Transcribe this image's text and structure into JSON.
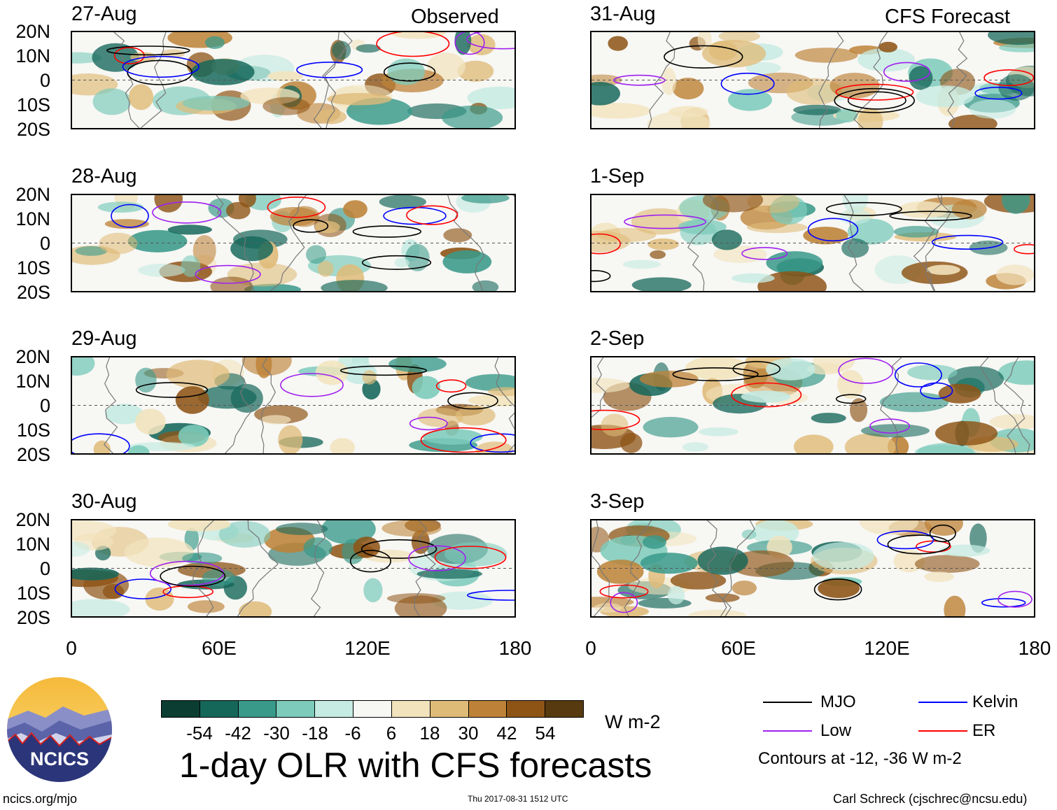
{
  "left_column": {
    "header_label": "Observed",
    "panels": [
      {
        "date": "27-Aug"
      },
      {
        "date": "28-Aug"
      },
      {
        "date": "29-Aug"
      },
      {
        "date": "30-Aug"
      }
    ]
  },
  "right_column": {
    "header_label": "CFS Forecast",
    "panels": [
      {
        "date": "31-Aug"
      },
      {
        "date": "1-Sep"
      },
      {
        "date": "2-Sep"
      },
      {
        "date": "3-Sep"
      }
    ]
  },
  "lat_labels": [
    "20N",
    "10N",
    "0",
    "10S",
    "20S"
  ],
  "lon_labels": [
    "0",
    "60E",
    "120E",
    "180"
  ],
  "colorbar": {
    "labels": [
      "-54",
      "-42",
      "-30",
      "-18",
      "-6",
      "6",
      "18",
      "30",
      "42",
      "54"
    ],
    "colors": [
      "#0b3d33",
      "#15675a",
      "#3a9a8a",
      "#7ccbbb",
      "#c5ebe2",
      "#f7f7f4",
      "#f2e3bd",
      "#dfbb78",
      "#bd8237",
      "#8e5416",
      "#583a10"
    ],
    "units": "W m-2"
  },
  "title": "1-day OLR with CFS forecasts",
  "legend": {
    "items": [
      {
        "label": "MJO",
        "color": "#000000"
      },
      {
        "label": "Kelvin",
        "color": "#0000ff"
      },
      {
        "label": "Low",
        "color": "#a020f0"
      },
      {
        "label": "ER",
        "color": "#ff0000"
      }
    ],
    "note": "Contours at -12, -36 W m-2"
  },
  "logo": {
    "text": "NCICS"
  },
  "footer": {
    "left": "ncics.org/mjo",
    "center": "Thu 2017-08-31 1512 UTC",
    "right": "Carl Schreck (cjschrec@ncsu.edu)"
  }
}
